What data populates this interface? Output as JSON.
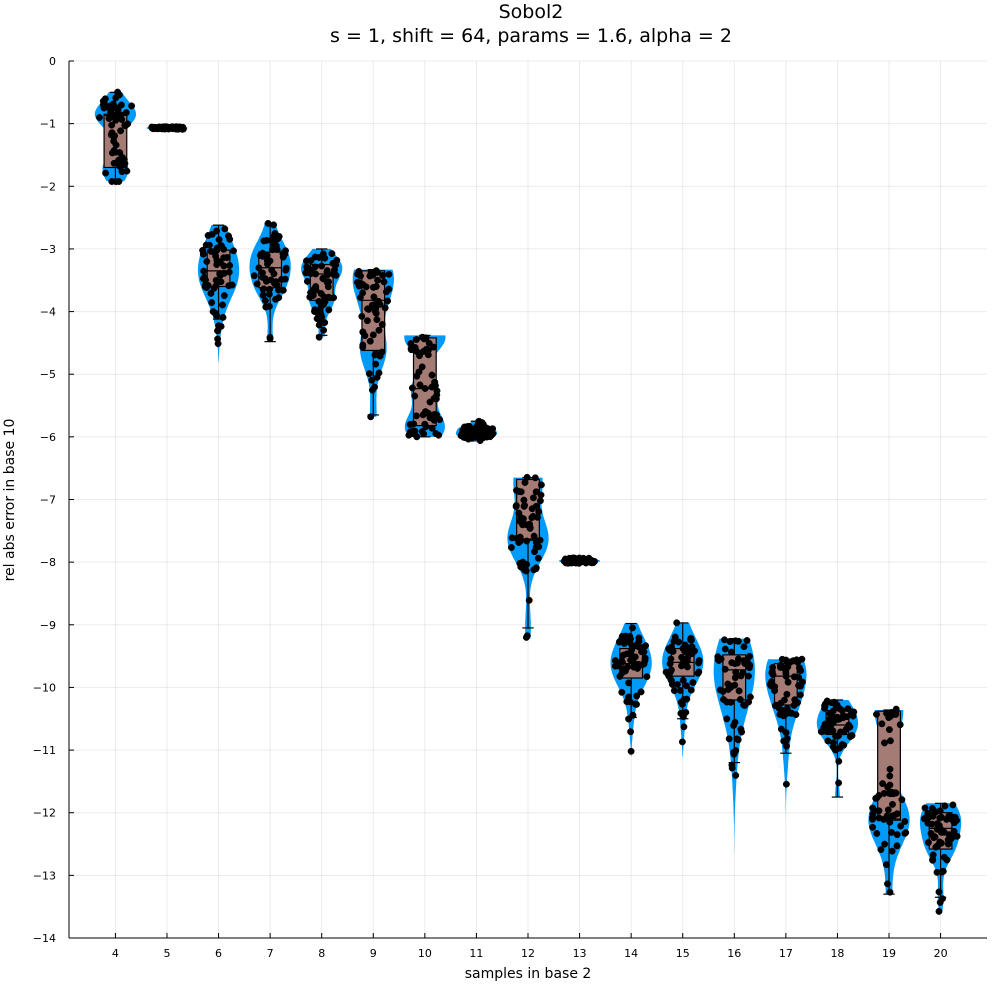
{
  "chart_data": {
    "type": "violin",
    "title": "Sobol2",
    "subtitle": "s = 1, shift = 64, params = 1.6, alpha = 2",
    "xlabel": "samples in base 2",
    "ylabel": "rel abs error in base 10",
    "xlim": [
      3.1,
      20.9
    ],
    "ylim": [
      -14,
      0
    ],
    "grid": true,
    "legend": "none",
    "x_ticks": [
      4,
      5,
      6,
      7,
      8,
      9,
      10,
      11,
      12,
      13,
      14,
      15,
      16,
      17,
      18,
      19,
      20
    ],
    "y_ticks": [
      0,
      -1,
      -2,
      -3,
      -4,
      -5,
      -6,
      -7,
      -8,
      -9,
      -10,
      -11,
      -12,
      -13,
      -14
    ],
    "colors": {
      "violin": "#009af9",
      "box": "#a57b75",
      "box_edge": "#000000",
      "points": "#000000"
    },
    "groups": [
      {
        "x": 4,
        "min": -1.9,
        "q1": -1.7,
        "median": -0.87,
        "q3": -0.85,
        "max": -0.5,
        "vmin": -1.92,
        "vmax": -0.5
      },
      {
        "x": 5,
        "min": -1.09,
        "q1": -1.08,
        "median": -1.07,
        "q3": -1.06,
        "max": -1.05,
        "vmin": -1.09,
        "vmax": -1.05
      },
      {
        "x": 6,
        "min": -4.12,
        "q1": -3.6,
        "median": -3.35,
        "q3": -3.02,
        "max": -2.62,
        "vmin": -4.8,
        "vmax": -2.62
      },
      {
        "x": 7,
        "min": -4.48,
        "q1": -3.62,
        "median": -3.3,
        "q3": -3.05,
        "max": -2.6,
        "vmin": -4.48,
        "vmax": -2.6
      },
      {
        "x": 8,
        "min": -4.38,
        "q1": -3.82,
        "median": -3.4,
        "q3": -3.25,
        "max": -3.0,
        "vmin": -4.4,
        "vmax": -3.0
      },
      {
        "x": 9,
        "min": -5.65,
        "q1": -4.62,
        "median": -3.82,
        "q3": -3.35,
        "max": -3.33,
        "vmin": -5.68,
        "vmax": -3.33
      },
      {
        "x": 10,
        "min": -6.0,
        "q1": -5.82,
        "median": -5.23,
        "q3": -4.42,
        "max": -4.38,
        "vmin": -6.0,
        "vmax": -4.38
      },
      {
        "x": 11,
        "min": -6.05,
        "q1": -5.98,
        "median": -5.92,
        "q3": -5.85,
        "max": -5.75,
        "vmin": -6.08,
        "vmax": -5.75
      },
      {
        "x": 12,
        "min": -9.05,
        "q1": -7.65,
        "median": -7.63,
        "q3": -6.68,
        "max": -6.65,
        "vmin": -9.22,
        "vmax": -6.65
      },
      {
        "x": 13,
        "min": -8.02,
        "q1": -8.0,
        "median": -7.98,
        "q3": -7.96,
        "max": -7.93,
        "vmin": -8.02,
        "vmax": -7.93
      },
      {
        "x": 14,
        "min": -10.48,
        "q1": -9.85,
        "median": -9.62,
        "q3": -9.38,
        "max": -8.98,
        "vmin": -11.1,
        "vmax": -8.98
      },
      {
        "x": 15,
        "min": -10.5,
        "q1": -9.82,
        "median": -9.6,
        "q3": -9.38,
        "max": -8.97,
        "vmin": -11.1,
        "vmax": -8.97
      },
      {
        "x": 16,
        "min": -11.2,
        "q1": -10.2,
        "median": -9.72,
        "q3": -9.48,
        "max": -9.22,
        "vmin": -12.88,
        "vmax": -9.22
      },
      {
        "x": 17,
        "min": -11.05,
        "q1": -10.28,
        "median": -9.82,
        "q3": -9.62,
        "max": -9.55,
        "vmin": -12.1,
        "vmax": -9.55
      },
      {
        "x": 18,
        "min": -11.75,
        "q1": -10.75,
        "median": -10.6,
        "q3": -10.37,
        "max": -10.2,
        "vmin": -11.75,
        "vmax": -10.2
      },
      {
        "x": 19,
        "min": -13.3,
        "q1": -12.12,
        "median": -12.1,
        "q3": -10.38,
        "max": -10.36,
        "vmin": -13.3,
        "vmax": -10.36
      },
      {
        "x": 20,
        "min": -13.35,
        "q1": -12.58,
        "median": -12.25,
        "q3": -12.0,
        "max": -11.85,
        "vmin": -13.58,
        "vmax": -11.85
      }
    ]
  }
}
